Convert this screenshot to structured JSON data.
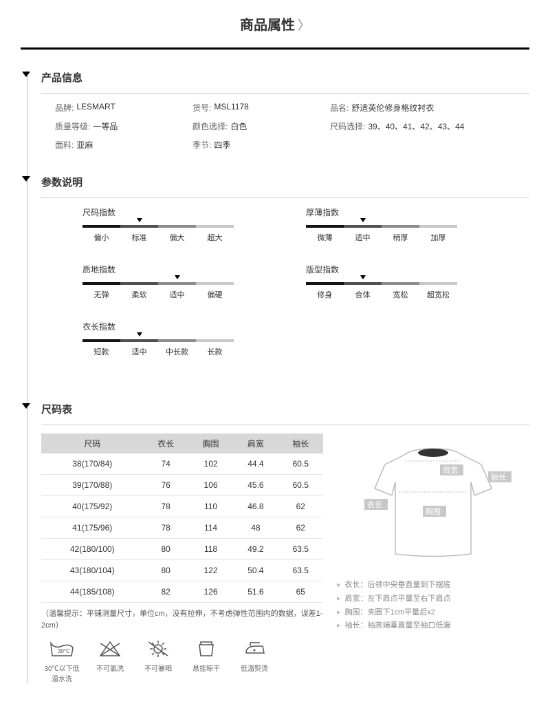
{
  "header": {
    "title": "商品属性"
  },
  "sections": {
    "info": {
      "title": "产品信息",
      "rows": [
        [
          {
            "label": "品牌:",
            "value": "LESMART"
          },
          {
            "label": "货号:",
            "value": "MSL1178"
          },
          {
            "label": "品名:",
            "value": "舒适英伦修身格纹衬衣"
          }
        ],
        [
          {
            "label": "质量等级:",
            "value": "一等品"
          },
          {
            "label": "颜色选择:",
            "value": "白色"
          },
          {
            "label": "尺码选择:",
            "value": "39、40、41、42、43、44"
          }
        ],
        [
          {
            "label": "面料:",
            "value": "亚麻"
          },
          {
            "label": "季节:",
            "value": "四季"
          },
          {
            "label": "",
            "value": ""
          }
        ]
      ]
    },
    "params": {
      "title": "参数说明",
      "items": [
        {
          "name": "尺码指数",
          "options": [
            "偏小",
            "标准",
            "偏大",
            "超大"
          ],
          "selected": 1
        },
        {
          "name": "厚薄指数",
          "options": [
            "微薄",
            "适中",
            "稍厚",
            "加厚"
          ],
          "selected": 1
        },
        {
          "name": "质地指数",
          "options": [
            "无弹",
            "柔软",
            "适中",
            "偏硬"
          ],
          "selected": 2
        },
        {
          "name": "版型指数",
          "options": [
            "修身",
            "合体",
            "宽松",
            "超宽松"
          ],
          "selected": 1
        },
        {
          "name": "衣长指数",
          "options": [
            "短款",
            "适中",
            "中长款",
            "长款"
          ],
          "selected": 1
        }
      ]
    },
    "size": {
      "title": "尺码表",
      "columns": [
        "尺码",
        "衣长",
        "胸围",
        "肩宽",
        "袖长"
      ],
      "rows": [
        [
          "38(170/84)",
          "74",
          "102",
          "44.4",
          "60.5"
        ],
        [
          "39(170/88)",
          "76",
          "106",
          "45.6",
          "60.5"
        ],
        [
          "40(175/92)",
          "78",
          "110",
          "46.8",
          "62"
        ],
        [
          "41(175/96)",
          "78",
          "114",
          "48",
          "62"
        ],
        [
          "42(180/100)",
          "80",
          "118",
          "49.2",
          "63.5"
        ],
        [
          "43(180/104)",
          "80",
          "122",
          "50.4",
          "63.5"
        ],
        [
          "44(185/108)",
          "82",
          "126",
          "51.6",
          "65"
        ]
      ],
      "note": "（温馨提示：平铺测量尺寸，单位cm，没有拉伸，不考虑弹性范围内的数据，误差1-2cm）",
      "care": [
        {
          "label": "30℃以下低温水洗",
          "icon": "wash"
        },
        {
          "label": "不可氯洗",
          "icon": "no-bleach"
        },
        {
          "label": "不可暴晒",
          "icon": "no-sun"
        },
        {
          "label": "悬挂晾干",
          "icon": "hang-dry"
        },
        {
          "label": "低温熨烫",
          "icon": "iron-low"
        }
      ],
      "diagram_labels": {
        "shoulder": "肩宽",
        "sleeve": "袖长",
        "length": "衣长",
        "chest": "胸围"
      },
      "legend": [
        "衣长：后领中央垂直量到下摆底",
        "肩宽：左下肩点平量至右下肩点",
        "胸围：夹圈下1cm平量后x2",
        "袖长：袖高端垂直量至袖口低端"
      ]
    }
  },
  "colors": {
    "text": "#333333",
    "muted": "#888888",
    "border": "#cccccc",
    "th_bg": "#d8d8d8",
    "row_border": "#e5e5e5"
  }
}
